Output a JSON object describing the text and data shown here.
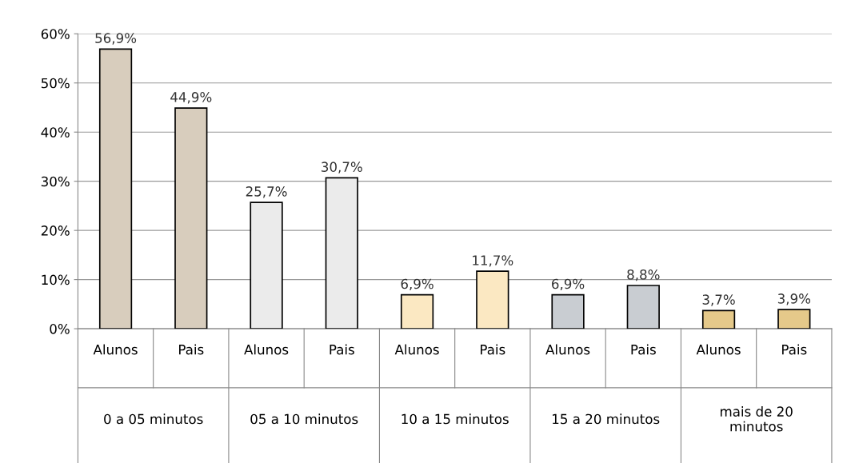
{
  "chart_data": {
    "type": "bar",
    "categories": [
      "Alunos",
      "Pais",
      "Alunos",
      "Pais",
      "Alunos",
      "Pais",
      "Alunos",
      "Pais",
      "Alunos",
      "Pais"
    ],
    "values": [
      56.9,
      44.9,
      25.7,
      30.7,
      6.9,
      11.7,
      6.9,
      8.8,
      3.7,
      3.9
    ],
    "value_labels": [
      "56,9%",
      "44,9%",
      "25,7%",
      "30,7%",
      "6,9%",
      "11,7%",
      "6,9%",
      "8,8%",
      "3,7%",
      "3,9%"
    ],
    "colors": [
      "#d8cdbd",
      "#d8cdbd",
      "#ebebeb",
      "#ebebeb",
      "#fbe8c2",
      "#fbe8c2",
      "#c9cdd2",
      "#c9cdd2",
      "#e5c98a",
      "#e5c98a"
    ],
    "annotations": [
      "0 a 05 minutos",
      "05 a 10 minutos",
      "10 a 15 minutos",
      "15 a 20 minutos",
      "mais de 20\nminutos"
    ],
    "ylim": [
      0,
      60
    ],
    "yticks": [
      {
        "value": 0,
        "label": "0%"
      },
      {
        "value": 10,
        "label": "10%"
      },
      {
        "value": 20,
        "label": "20%"
      },
      {
        "value": 30,
        "label": "30%"
      },
      {
        "value": 40,
        "label": "40%"
      },
      {
        "value": 50,
        "label": "50%"
      },
      {
        "value": 60,
        "label": "60%"
      }
    ],
    "grid": "y"
  }
}
